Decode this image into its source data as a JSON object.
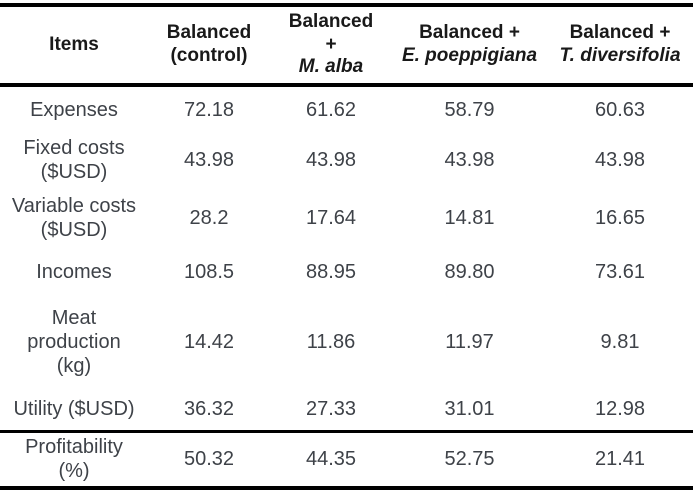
{
  "table": {
    "columns": [
      {
        "title": "Items"
      },
      {
        "line1": "Balanced",
        "line2": "(control)"
      },
      {
        "line1": "Balanced",
        "line2": "+",
        "species": "M. alba"
      },
      {
        "line1": "Balanced +",
        "species": "E. poeppigiana"
      },
      {
        "line1": "Balanced +",
        "species": "T. diversifolia"
      }
    ],
    "rows": [
      {
        "label": "Expenses",
        "values": [
          "72.18",
          "61.62",
          "58.79",
          "60.63"
        ]
      },
      {
        "label": "Fixed costs\n($USD)",
        "values": [
          "43.98",
          "43.98",
          "43.98",
          "43.98"
        ]
      },
      {
        "label": "Variable costs\n($USD)",
        "values": [
          "28.2",
          "17.64",
          "14.81",
          "16.65"
        ]
      },
      {
        "label": "Incomes",
        "values": [
          "108.5",
          "88.95",
          "89.80",
          "73.61"
        ]
      },
      {
        "label": "Meat\nproduction\n(kg)",
        "values": [
          "14.42",
          "11.86",
          "11.97",
          "9.81"
        ]
      },
      {
        "label": "Utility ($USD)",
        "values": [
          "36.32",
          "27.33",
          "31.01",
          "12.98"
        ]
      },
      {
        "label": "Profitability\n(%)",
        "values": [
          "50.32",
          "44.35",
          "52.75",
          "21.41"
        ]
      }
    ]
  },
  "colors": {
    "border": "#000000",
    "header_text": "#191919",
    "body_text": "#3e4248",
    "background": "#ffffff"
  }
}
